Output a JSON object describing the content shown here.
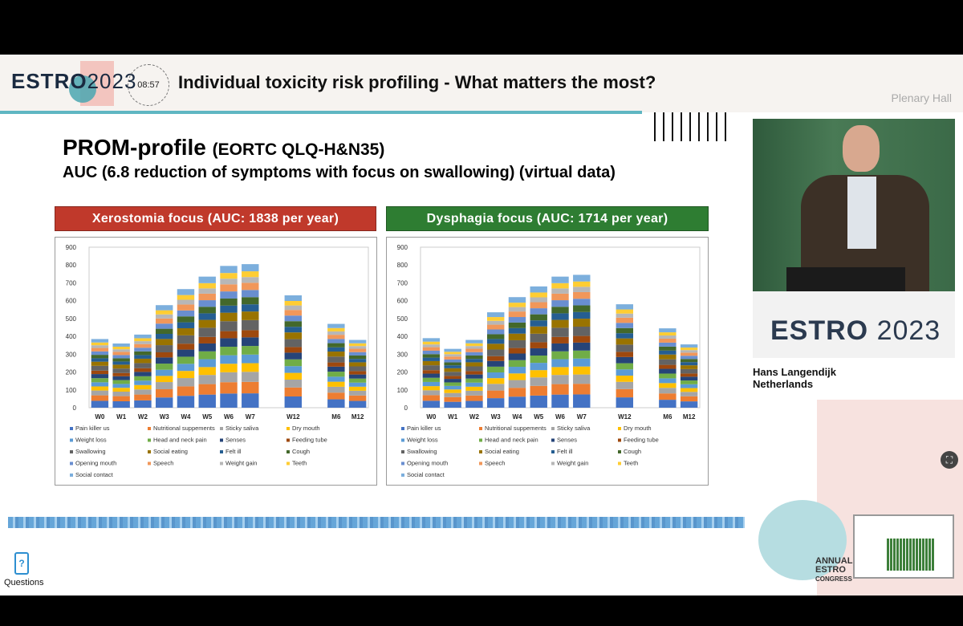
{
  "header": {
    "logo_text": "ESTRO",
    "logo_year": "2023",
    "timer": "08:57",
    "title": "Individual toxicity risk profiling - What matters the most?",
    "room": "Plenary Hall"
  },
  "slide": {
    "title": "PROM-profile",
    "title_suffix": "(EORTC QLQ-H&N35)",
    "subtitle": "AUC (6.8 reduction of symptoms with focus on swallowing) (virtual data)"
  },
  "speaker": {
    "name": "Hans Langendijk",
    "country": "Netherlands"
  },
  "podium_logo": {
    "text": "ESTRO",
    "year": "2023"
  },
  "congress": {
    "line1": "ANNUAL",
    "line2": "ESTRO",
    "line3": "CONGRESS"
  },
  "questions_label": "Questions",
  "colors": {
    "banner_left": "#c0392b",
    "banner_right": "#2e7d32",
    "accent": "#5fb6c2"
  },
  "chart_data": [
    {
      "type": "bar",
      "stacked": true,
      "title": "Xerostomia focus (AUC: 1838 per year)",
      "categories": [
        "W0",
        "W1",
        "W2",
        "W3",
        "W4",
        "W5",
        "W6",
        "W7",
        "W12",
        "M6",
        "M12"
      ],
      "totals": [
        385,
        360,
        410,
        575,
        665,
        735,
        795,
        805,
        630,
        470,
        380
      ],
      "ylim": [
        0,
        900
      ],
      "yticks": [
        0,
        100,
        200,
        300,
        400,
        500,
        600,
        700,
        800,
        900
      ],
      "legend": [
        "Pain killer us",
        "Nutritional suppements",
        "Sticky saliva",
        "Dry mouth",
        "Weight loss",
        "Head and neck pain",
        "Senses",
        "Feeding tube",
        "Swallowing",
        "Social eating",
        "Felt ill",
        "Cough",
        "Opening mouth",
        "Speech",
        "Weight gain",
        "Teeth",
        "Social contact"
      ],
      "legend_placement": "bottom",
      "grid": false
    },
    {
      "type": "bar",
      "stacked": true,
      "title": "Dysphagia focus (AUC: 1714 per year)",
      "categories": [
        "W0",
        "W1",
        "W2",
        "W3",
        "W4",
        "W5",
        "W6",
        "W7",
        "W12",
        "M6",
        "M12"
      ],
      "totals": [
        390,
        330,
        380,
        535,
        620,
        680,
        735,
        745,
        580,
        445,
        355
      ],
      "ylim": [
        0,
        900
      ],
      "yticks": [
        0,
        100,
        200,
        300,
        400,
        500,
        600,
        700,
        800,
        900
      ],
      "legend": [
        "Pain killer us",
        "Nutritional suppements",
        "Sticky saliva",
        "Dry mouth",
        "Weight loss",
        "Head and neck pain",
        "Senses",
        "Feeding tube",
        "Swallowing",
        "Social eating",
        "Felt ill",
        "Cough",
        "Opening mouth",
        "Speech",
        "Weight gain",
        "Teeth",
        "Social contact"
      ],
      "legend_placement": "bottom",
      "grid": false
    }
  ],
  "series_colors": [
    "#4472c4",
    "#ed7d31",
    "#a5a5a5",
    "#ffc000",
    "#5b9bd5",
    "#70ad47",
    "#264478",
    "#9e480e",
    "#636363",
    "#997300",
    "#255e91",
    "#43682b",
    "#698ed0",
    "#f1975a",
    "#b7b7b7",
    "#ffcd33",
    "#7cafdd"
  ]
}
